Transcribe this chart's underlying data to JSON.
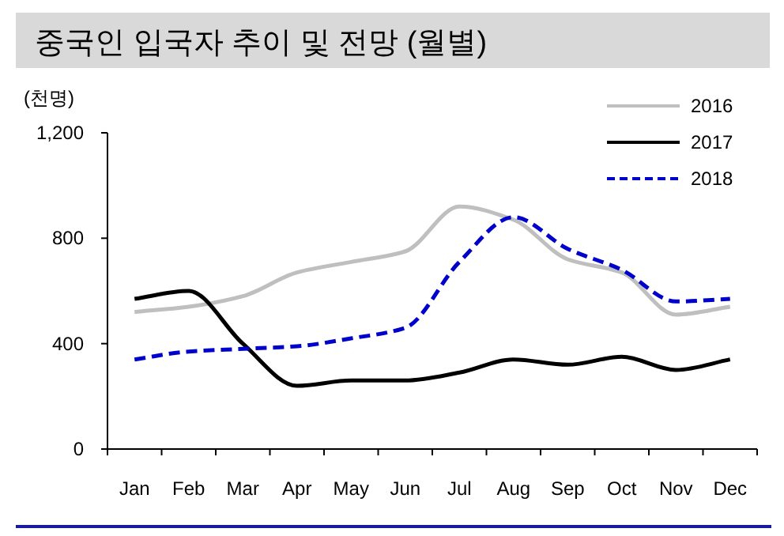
{
  "chart_data": {
    "type": "line",
    "title": "중국인 입국자 추이 및 전망 (월별)",
    "ylabel": "(천명)",
    "categories": [
      "Jan",
      "Feb",
      "Mar",
      "Apr",
      "May",
      "Jun",
      "Jul",
      "Aug",
      "Sep",
      "Oct",
      "Nov",
      "Dec"
    ],
    "series": [
      {
        "name": "2016",
        "color": "#bfbfbf",
        "line_style": "solid",
        "values": [
          520,
          540,
          580,
          670,
          710,
          750,
          920,
          870,
          720,
          670,
          510,
          540
        ]
      },
      {
        "name": "2017",
        "color": "#000000",
        "line_style": "solid",
        "values": [
          570,
          600,
          400,
          240,
          260,
          260,
          290,
          340,
          320,
          350,
          300,
          340
        ]
      },
      {
        "name": "2018",
        "color": "#0000cc",
        "line_style": "dashed",
        "values": [
          340,
          370,
          380,
          390,
          420,
          460,
          710,
          880,
          760,
          680,
          560,
          570
        ]
      }
    ],
    "ylim": [
      0,
      1200
    ],
    "yticks": [
      {
        "value": 0,
        "label": "0"
      },
      {
        "value": 400,
        "label": "400"
      },
      {
        "value": 800,
        "label": "800"
      },
      {
        "value": 1200,
        "label": "1,200"
      }
    ],
    "legend": "top right"
  }
}
